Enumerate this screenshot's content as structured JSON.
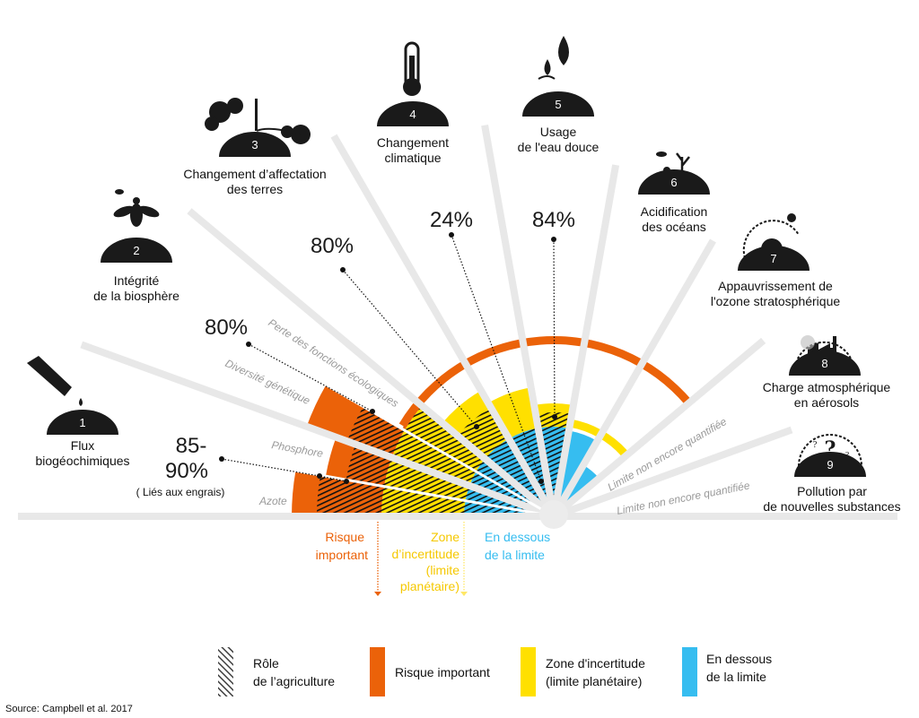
{
  "colors": {
    "high_risk": "#eb6209",
    "uncertainty": "#ffe000",
    "below_limit": "#36bdf0",
    "ray": "#e8e8e8",
    "icon": "#1a1a1a"
  },
  "boundaries": [
    {
      "number": "1",
      "icon": "test-tube-drop-icon",
      "label_lines": [
        "Flux",
        "biogéochimiques"
      ]
    },
    {
      "number": "2",
      "icon": "bee-icon",
      "label_lines": [
        "Intégrité",
        "de la biosphère"
      ]
    },
    {
      "number": "3",
      "icon": "tree-icon",
      "label_lines": [
        "Changement d’affectation",
        "des terres"
      ]
    },
    {
      "number": "4",
      "icon": "thermometer-icon",
      "label_lines": [
        "Changement",
        "climatique"
      ]
    },
    {
      "number": "5",
      "icon": "water-drops-icon",
      "label_lines": [
        "Usage",
        "de l'eau douce"
      ]
    },
    {
      "number": "6",
      "icon": "coral-fish-icon",
      "label_lines": [
        "Acidification",
        "des océans"
      ]
    },
    {
      "number": "7",
      "icon": "globe-sun-icon",
      "label_lines": [
        "Appauvrissement de",
        "l'ozone stratosphérique"
      ]
    },
    {
      "number": "8",
      "icon": "factory-aerosol-icon",
      "label_lines": [
        "Charge atmosphérique",
        "en  aérosols"
      ]
    },
    {
      "number": "9",
      "icon": "question-marks-icon",
      "label_lines": [
        "Pollution par",
        "de nouvelles substances"
      ]
    }
  ],
  "sub_labels": {
    "azote": "Azote",
    "phosphore": "Phosphore",
    "diversite": "Diversité génétique",
    "fonctions": "Perte des fonctions écologiques",
    "not_quantified_1": "Limite non encore quantifiée",
    "not_quantified_2": "Limite non encore quantifiée"
  },
  "agriculture_shares": {
    "flux": {
      "line1": "85-",
      "line2": "90%",
      "note": "( Liés aux engrais)"
    },
    "biosphere": "80%",
    "land": "80%",
    "climate": "24%",
    "water": "84%"
  },
  "zones": {
    "high_risk": [
      "Risque",
      "important"
    ],
    "uncertainty": [
      "Zone",
      "d’incertitude",
      "(limite",
      "planétaire)"
    ],
    "below": [
      "En dessous",
      "de la limite"
    ]
  },
  "legend": [
    {
      "key": "hatch",
      "lines": [
        "Rôle",
        "de l’agriculture"
      ]
    },
    {
      "key": "high_risk",
      "lines": [
        "Risque important"
      ]
    },
    {
      "key": "uncertainty",
      "lines": [
        "Zone d'incertitude",
        "(limite planétaire)"
      ]
    },
    {
      "key": "below_limit",
      "lines": [
        "En dessous",
        "de la limite"
      ]
    }
  ],
  "source": "Source: Campbell et al. 2017"
}
